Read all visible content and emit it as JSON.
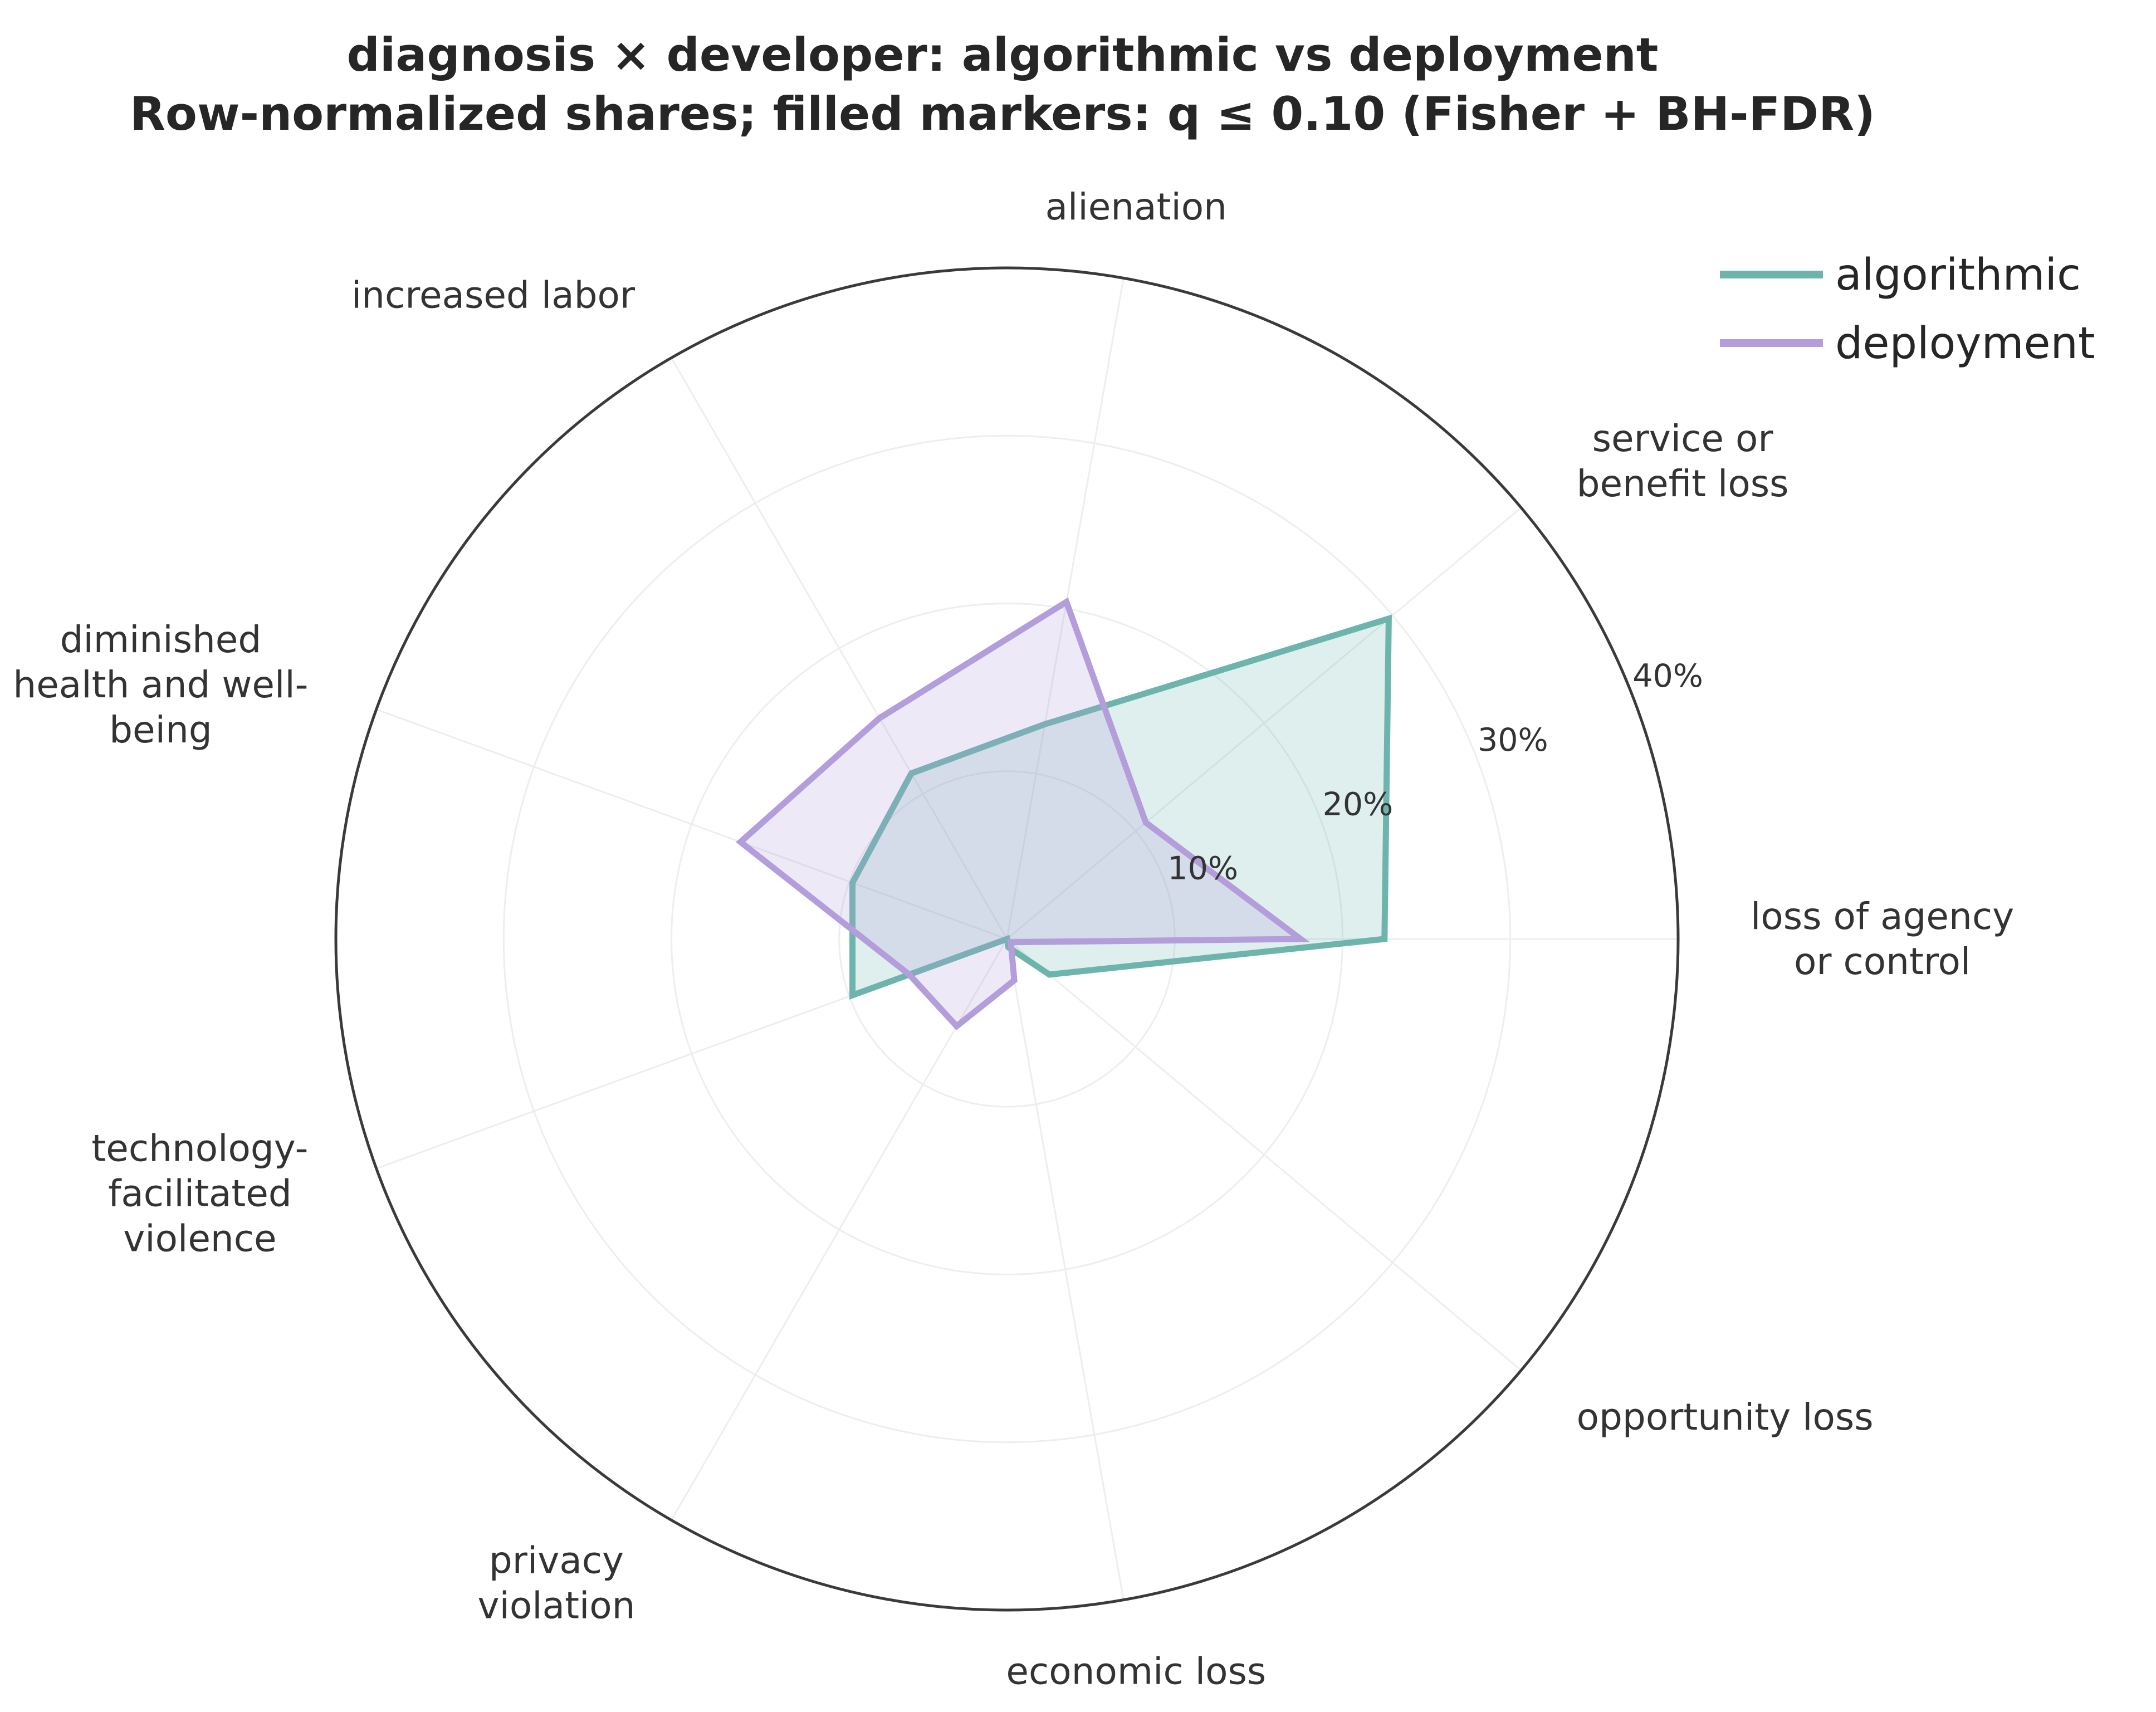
{
  "chart_data": {
    "type": "radar",
    "title": "diagnosis × developer: algorithmic vs deployment",
    "subtitle": "Row-normalized shares; filled markers: q ≤ 0.10 (Fisher + BH-FDR)",
    "categories": [
      "loss of agency\nor control",
      "service or\nbenefit loss",
      "alienation",
      "increased labor",
      "diminished\nhealth and well-\nbeing",
      "technology-\nfacilitated\nviolence",
      "privacy\nviolation",
      "economic loss",
      "opportunity loss"
    ],
    "radial_ticks": [
      "10%",
      "20%",
      "30%",
      "40%"
    ],
    "radial_tick_values": [
      10,
      20,
      30,
      40
    ],
    "rlim": [
      0,
      40
    ],
    "series": [
      {
        "name": "algorithmic",
        "color": "#6db5ac",
        "values": [
          22.5,
          29.7,
          13.0,
          11.4,
          9.8,
          9.8,
          0.0,
          0.5,
          3.3
        ]
      },
      {
        "name": "deployment",
        "color": "#b39ddb",
        "values": [
          17.5,
          10.8,
          20.4,
          15.2,
          16.9,
          6.2,
          6.0,
          2.5,
          0.3
        ]
      }
    ],
    "legend_position": "top-right",
    "grid": true
  }
}
